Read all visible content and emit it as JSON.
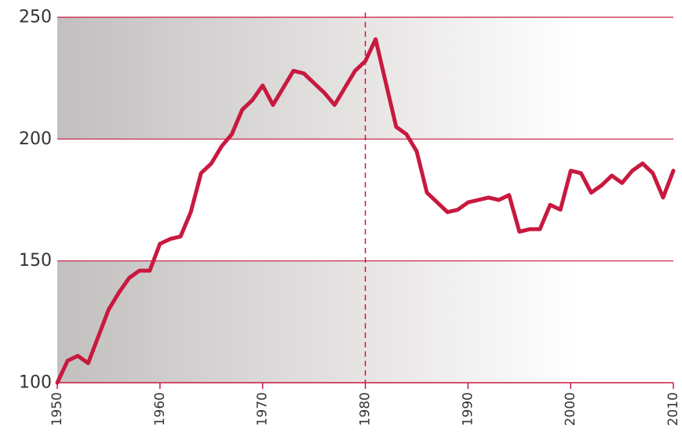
{
  "chart_data": {
    "type": "line",
    "title": "",
    "xlabel": "",
    "ylabel": "",
    "xlim": [
      1950,
      2010
    ],
    "ylim": [
      100,
      250
    ],
    "x_ticks": [
      "1950",
      "1960",
      "1970",
      "1980",
      "1990",
      "2000",
      "2010"
    ],
    "y_ticks": [
      "100",
      "150",
      "200",
      "250"
    ],
    "grid": "horizontal",
    "reference_line": {
      "x": 1980,
      "style": "dashed"
    },
    "colors": {
      "series": "#c8193f",
      "grid": "#c8193f",
      "band_dark": "#c2c0bf",
      "band_light": "#ffffff"
    },
    "series": [
      {
        "x": [
          1950,
          1951,
          1952,
          1953,
          1954,
          1955,
          1956,
          1957,
          1958,
          1959,
          1960,
          1961,
          1962,
          1963,
          1964,
          1965,
          1966,
          1967,
          1968,
          1969,
          1970,
          1971,
          1972,
          1973,
          1974,
          1975,
          1976,
          1977,
          1978,
          1979,
          1980,
          1981,
          1982,
          1983,
          1984,
          1985,
          1986,
          1987,
          1988,
          1989,
          1990,
          1991,
          1992,
          1993,
          1994,
          1995,
          1996,
          1997,
          1998,
          1999,
          2000,
          2001,
          2002,
          2003,
          2004,
          2005,
          2006,
          2007,
          2008,
          2009,
          2010
        ],
        "values": [
          100,
          109,
          111,
          108,
          119,
          130,
          137,
          143,
          146,
          146,
          157,
          159,
          160,
          170,
          186,
          190,
          197,
          202,
          212,
          216,
          222,
          214,
          221,
          228,
          227,
          223,
          219,
          214,
          221,
          228,
          232,
          241,
          223,
          205,
          202,
          195,
          178,
          174,
          170,
          171,
          174,
          175,
          176,
          175,
          177,
          162,
          163,
          163,
          173,
          171,
          187,
          186,
          178,
          181,
          185,
          182,
          187,
          190,
          186,
          176,
          187
        ]
      }
    ]
  }
}
